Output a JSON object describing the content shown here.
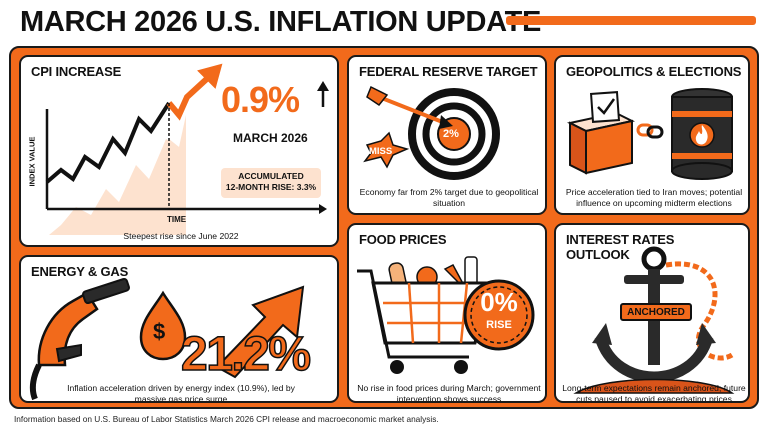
{
  "title": "MARCH 2026 U.S. INFLATION UPDATE",
  "colors": {
    "accent": "#f26a1b",
    "dark": "#1a1a1a",
    "peach": "#fde2cf"
  },
  "cpi": {
    "heading": "CPI INCREASE",
    "value": "0.9%",
    "period": "MARCH 2026",
    "accumulated_line1": "ACCUMULATED",
    "accumulated_line2": "12-MONTH RISE: 3.3%",
    "y_axis_label": "INDEX VALUE",
    "x_axis_label": "TIME",
    "caption": "Steepest rise since June 2022"
  },
  "fed": {
    "heading": "FEDERAL RESERVE TARGET",
    "target": "2%",
    "miss_label": "MISS",
    "caption": "Economy far from 2% target due to geopolitical situation"
  },
  "geo": {
    "heading": "GEOPOLITICS & ELECTIONS",
    "caption": "Price acceleration tied to Iran moves; potential influence on upcoming midterm elections"
  },
  "energy": {
    "heading": "ENERGY & GAS",
    "value": "21.2%",
    "currency_symbol": "$",
    "caption": "Inflation acceleration driven by energy index (10.9%), led by massive gas price surge"
  },
  "food": {
    "heading": "FOOD PRICES",
    "badge_value": "0%",
    "badge_label": "RISE",
    "caption": "No rise in food prices during March; government intervention shows success"
  },
  "rates": {
    "heading_line1": "INTEREST RATES",
    "heading_line2": "OUTLOOK",
    "anchor_label": "ANCHORED",
    "caption": "Long-term expectations remain anchored; future cuts paused to avoid exacerbating prices"
  },
  "footer": "Information based on U.S. Bureau of Labor Statistics March 2026 CPI release and macroeconomic market analysis."
}
